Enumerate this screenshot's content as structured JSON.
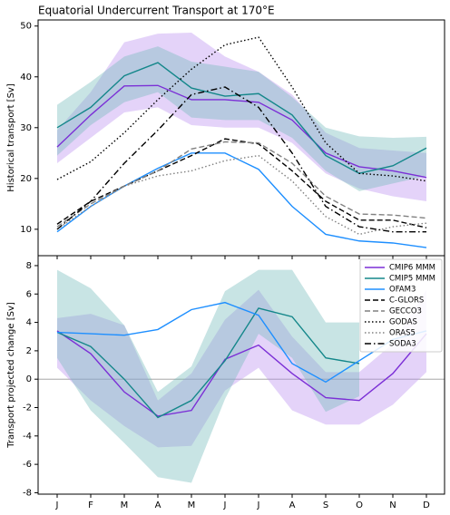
{
  "chart_data": [
    {
      "type": "line",
      "title": "Equatorial Undercurrent Transport at 170°E",
      "ylabel": "Historical transport [Sv]",
      "ylim": [
        4.8,
        51.2
      ],
      "yticks": [
        10,
        20,
        30,
        40,
        50
      ],
      "series": [
        {
          "name": "CMIP6 MMM",
          "color": "#7b2fd6",
          "style": "solid",
          "band_color": "#b98cf0",
          "values": [
            26.2,
            32.5,
            38.2,
            38.3,
            35.5,
            35.5,
            35,
            31.5,
            25,
            22.3,
            21.5,
            20.2
          ],
          "lower": [
            23,
            28,
            33,
            34,
            30.5,
            30,
            30,
            27,
            21,
            18,
            16.5,
            15.5
          ],
          "upper": [
            29.5,
            37,
            46.8,
            48.5,
            48.7,
            44,
            41,
            36.5,
            29,
            26,
            25.5,
            25
          ]
        },
        {
          "name": "CMIP5 MMM",
          "color": "#14878a",
          "style": "solid",
          "band_color": "#6fb7b7",
          "values": [
            30,
            34,
            40.2,
            42.8,
            37.8,
            36.2,
            36.7,
            32.5,
            24.5,
            21,
            22.5,
            26
          ],
          "lower": [
            24.5,
            30.5,
            35,
            37,
            32,
            31.5,
            31.5,
            28,
            21.5,
            17.5,
            19,
            20.5
          ],
          "upper": [
            34.5,
            39,
            44,
            46,
            43,
            42,
            41,
            36,
            30,
            28.3,
            28,
            28.2
          ]
        },
        {
          "name": "OFAM3",
          "color": "#1e8fff",
          "style": "solid",
          "values": [
            9.5,
            14.5,
            18.5,
            22,
            25,
            25,
            21.8,
            14.5,
            9,
            7.7,
            7.3,
            6.4
          ]
        },
        {
          "name": "C-GLORS",
          "color": "#000000",
          "style": "dashed",
          "values": [
            11,
            15.5,
            18.5,
            21.5,
            24.5,
            27.8,
            26.8,
            21.5,
            15.5,
            11.8,
            11.8,
            10.3
          ]
        },
        {
          "name": "GECCO3",
          "color": "#808080",
          "style": "dashed",
          "values": [
            10.5,
            15,
            18.5,
            21.5,
            25.8,
            27.2,
            27,
            23,
            16.5,
            13,
            12.8,
            12.2
          ]
        },
        {
          "name": "GODAS",
          "color": "#000000",
          "style": "dotted",
          "values": [
            19.8,
            23.3,
            29,
            35.5,
            41.5,
            46.3,
            47.8,
            38,
            27,
            21,
            20.5,
            19.5
          ]
        },
        {
          "name": "ORAS5",
          "color": "#808080",
          "style": "dotted",
          "values": [
            10,
            14.5,
            18.5,
            20.5,
            21.5,
            23.5,
            24.5,
            19.5,
            12.5,
            9,
            10.5,
            11.2
          ]
        },
        {
          "name": "SODA3",
          "color": "#000000",
          "style": "dashdot",
          "values": [
            10,
            15.5,
            23,
            29.5,
            36.5,
            38,
            34,
            25,
            14.5,
            10.5,
            9.5,
            9.5
          ]
        }
      ]
    },
    {
      "type": "line",
      "ylabel": "Transport projected change [Sv]",
      "legend": "upper right",
      "categories": [
        "J",
        "F",
        "M",
        "A",
        "M",
        "J",
        "J",
        "A",
        "S",
        "O",
        "N",
        "D"
      ],
      "ylim": [
        -8.1,
        8.7
      ],
      "yticks": [
        -8,
        -6,
        -4,
        -2,
        0,
        2,
        4,
        6,
        8
      ],
      "hline": 0,
      "series": [
        {
          "color": "#7b2fd6",
          "style": "solid",
          "band_color": "#b98cf0",
          "values": [
            3.4,
            1.8,
            -0.9,
            -2.6,
            -2.2,
            1.4,
            2.4,
            0.4,
            -1.3,
            -1.5,
            0.4,
            3.2
          ],
          "lower": [
            0.8,
            -1.5,
            -3.3,
            -4.8,
            -4.7,
            -0.8,
            0.8,
            -2.2,
            -3.2,
            -3.2,
            -1.8,
            0.5
          ],
          "upper": [
            4.3,
            4.6,
            3.8,
            -1.5,
            0.4,
            4.2,
            6.3,
            3,
            0.5,
            0.5,
            2.5,
            6.3
          ]
        },
        {
          "color": "#14878a",
          "style": "solid",
          "band_color": "#6fb7b7",
          "values": [
            3.3,
            2.3,
            0,
            -2.7,
            -1.5,
            1.3,
            5,
            4.4,
            1.5,
            1.1,
            null,
            null
          ],
          "lower": [
            1.5,
            -2.2,
            -4.5,
            -6.9,
            -7.3,
            -1.4,
            3.2,
            1.5,
            -2.3,
            -1.2,
            null,
            null
          ],
          "upper": [
            7.7,
            6.4,
            3.8,
            -0.9,
            0.9,
            6.2,
            7.7,
            7.7,
            4,
            4,
            null,
            null
          ]
        },
        {
          "color": "#1e8fff",
          "style": "solid",
          "values": [
            3.3,
            3.2,
            3.1,
            3.5,
            4.9,
            5.4,
            4.5,
            1.1,
            -0.2,
            1.3,
            2.8,
            3.4
          ]
        }
      ]
    }
  ]
}
